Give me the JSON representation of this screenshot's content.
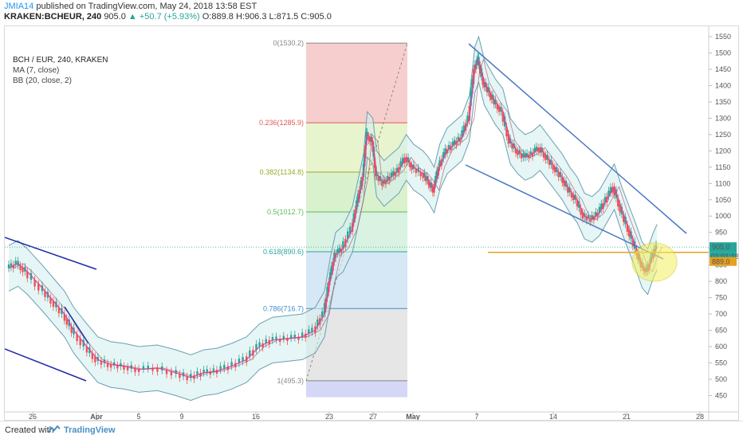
{
  "header": {
    "user": "JMIA14",
    "published": " published on TradingView.com, May 24, 2018 13:58 EST",
    "symbol": "KRAKEN:BCHEUR, 240",
    "last": "905.0",
    "change": "▲ +50.7 (+5.93%)",
    "ohlc": "O:889.8 H:906.3 L:871.5 C:905.0"
  },
  "legend": {
    "ticker": "BCH / EUR, 240, KRAKEN",
    "ma": "MA (7, close)",
    "bb": "BB (20, close, 2)"
  },
  "footer": {
    "created": "Created with",
    "brand": "TradingView",
    "logo_icon": "tradingview-logo-icon"
  },
  "chart_data": {
    "type": "line",
    "y_ticks": [
      450,
      500,
      550,
      600,
      650,
      700,
      750,
      800,
      850,
      900,
      950,
      1000,
      1050,
      1100,
      1150,
      1200,
      1250,
      1300,
      1350,
      1400,
      1450,
      1500,
      1550
    ],
    "x_ticks": [
      "26",
      "Apr",
      "5",
      "9",
      "16",
      "23",
      "27",
      "May",
      "7",
      "14",
      "21",
      "28"
    ],
    "fib_levels": [
      {
        "ratio": 0,
        "label": "0(1530.2)",
        "price": 1530.2,
        "color": "#888888",
        "fill": "#f4c6c6"
      },
      {
        "ratio": 0.236,
        "label": "0.236(1285.9)",
        "price": 1285.9,
        "color": "#e05a5a",
        "fill": "#e4f2c4"
      },
      {
        "ratio": 0.382,
        "label": "0.382(1134.8)",
        "price": 1134.8,
        "color": "#9aaa2a",
        "fill": "#d3efc4"
      },
      {
        "ratio": 0.5,
        "label": "0.5(1012.7)",
        "price": 1012.7,
        "color": "#5cb85c",
        "fill": "#d2f0dc"
      },
      {
        "ratio": 0.618,
        "label": "0.618(890.6)",
        "price": 890.6,
        "color": "#2aa6a0",
        "fill": "#cfe3f4"
      },
      {
        "ratio": 0.786,
        "label": "0.786(716.7)",
        "price": 716.7,
        "color": "#3d8fcf",
        "fill": "#e2e2e2"
      },
      {
        "ratio": 1,
        "label": "1(495.3)",
        "price": 495.3,
        "color": "#888888",
        "fill": "#cdd0f4"
      }
    ],
    "price_path": [
      [
        0,
        840
      ],
      [
        5,
        855
      ],
      [
        10,
        830
      ],
      [
        18,
        780
      ],
      [
        24,
        740
      ],
      [
        30,
        700
      ],
      [
        35,
        650
      ],
      [
        42,
        600
      ],
      [
        48,
        560
      ],
      [
        55,
        545
      ],
      [
        62,
        540
      ],
      [
        70,
        530
      ],
      [
        80,
        535
      ],
      [
        90,
        520
      ],
      [
        98,
        505
      ],
      [
        105,
        520
      ],
      [
        112,
        525
      ],
      [
        120,
        540
      ],
      [
        128,
        560
      ],
      [
        135,
        600
      ],
      [
        142,
        620
      ],
      [
        150,
        625
      ],
      [
        158,
        630
      ],
      [
        165,
        650
      ],
      [
        170,
        700
      ],
      [
        173,
        800
      ],
      [
        176,
        880
      ],
      [
        180,
        900
      ],
      [
        185,
        960
      ],
      [
        188,
        1040
      ],
      [
        191,
        1120
      ],
      [
        193,
        1250
      ],
      [
        196,
        1230
      ],
      [
        198,
        1130
      ],
      [
        202,
        1100
      ],
      [
        206,
        1120
      ],
      [
        210,
        1140
      ],
      [
        214,
        1180
      ],
      [
        218,
        1150
      ],
      [
        223,
        1130
      ],
      [
        226,
        1110
      ],
      [
        229,
        1080
      ],
      [
        232,
        1150
      ],
      [
        236,
        1200
      ],
      [
        240,
        1220
      ],
      [
        244,
        1240
      ],
      [
        248,
        1300
      ],
      [
        251,
        1450
      ],
      [
        253,
        1480
      ],
      [
        256,
        1410
      ],
      [
        259,
        1380
      ],
      [
        262,
        1350
      ],
      [
        266,
        1320
      ],
      [
        270,
        1230
      ],
      [
        274,
        1200
      ],
      [
        278,
        1180
      ],
      [
        282,
        1190
      ],
      [
        286,
        1210
      ],
      [
        290,
        1180
      ],
      [
        294,
        1150
      ],
      [
        298,
        1120
      ],
      [
        302,
        1080
      ],
      [
        306,
        1050
      ],
      [
        310,
        1000
      ],
      [
        314,
        990
      ],
      [
        318,
        1010
      ],
      [
        322,
        1050
      ],
      [
        326,
        1090
      ],
      [
        330,
        1020
      ],
      [
        334,
        960
      ],
      [
        338,
        900
      ],
      [
        341,
        850
      ],
      [
        344,
        830
      ],
      [
        347,
        880
      ],
      [
        349,
        905
      ]
    ],
    "last_price": "905.0",
    "last_time": "01:01:18",
    "prev_label": "889.0",
    "horizontal_level": 889.0
  }
}
